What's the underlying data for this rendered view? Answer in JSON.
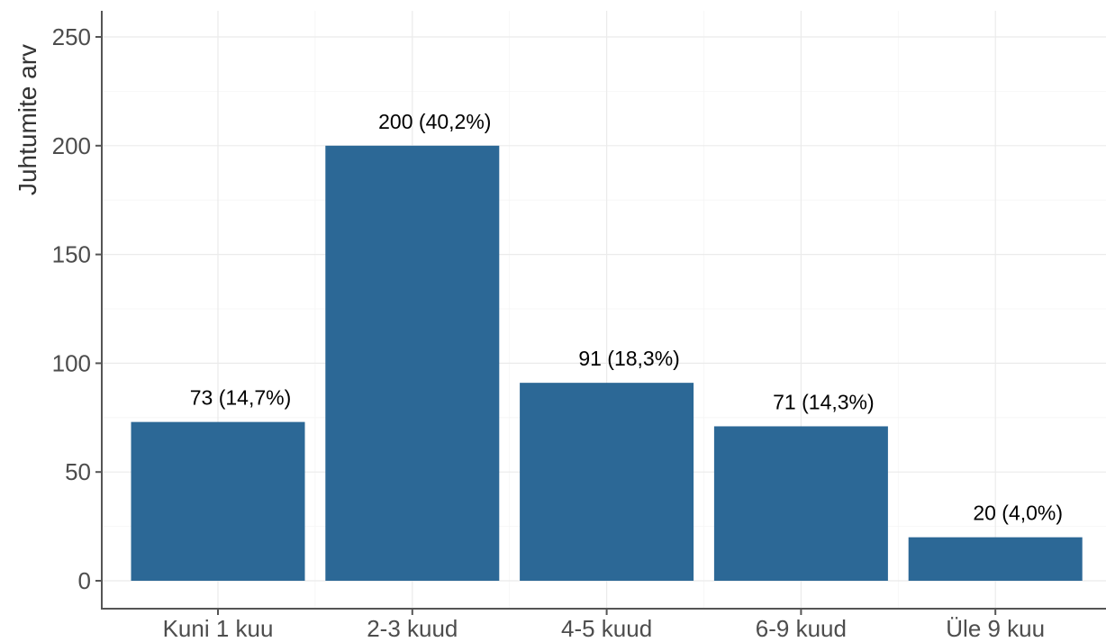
{
  "chart_data": {
    "type": "bar",
    "ylabel": "Juhtumite arv",
    "xlabel": "",
    "categories": [
      "Kuni 1 kuu",
      "2-3 kuud",
      "4-5 kuud",
      "6-9 kuud",
      "Üle 9 kuu"
    ],
    "values": [
      73,
      200,
      91,
      71,
      20
    ],
    "data_labels": [
      "73 (14,7%)",
      "200 (40,2%)",
      "91 (18,3%)",
      "71 (14,3%)",
      "20 (4,0%)"
    ],
    "y_ticks": [
      0,
      50,
      100,
      150,
      200,
      250
    ],
    "ylim": [
      0,
      250
    ],
    "grid": true,
    "bar_color": "#2c6896"
  }
}
